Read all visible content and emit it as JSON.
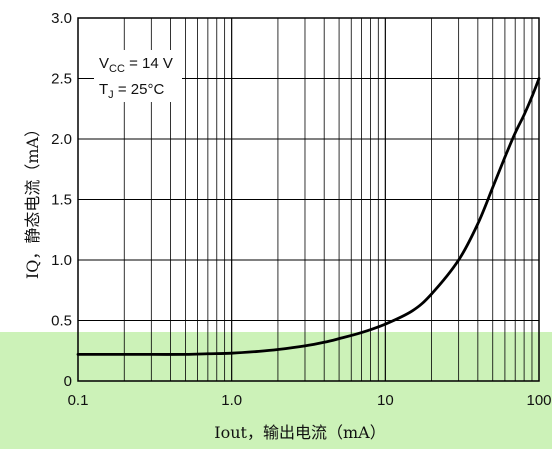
{
  "chart_data": {
    "type": "line",
    "xscale": "log",
    "xlim": [
      0.1,
      100
    ],
    "ylim": [
      0,
      3.0
    ],
    "x_ticks": [
      {
        "value": 0.1,
        "label": "0.1"
      },
      {
        "value": 1,
        "label": "1.0"
      },
      {
        "value": 10,
        "label": "10"
      },
      {
        "value": 100,
        "label": "100"
      }
    ],
    "y_ticks": [
      {
        "value": 0,
        "label": "0"
      },
      {
        "value": 0.5,
        "label": "0.5"
      },
      {
        "value": 1.0,
        "label": "1.0"
      },
      {
        "value": 1.5,
        "label": "1.5"
      },
      {
        "value": 2.0,
        "label": "2.0"
      },
      {
        "value": 2.5,
        "label": "2.5"
      },
      {
        "value": 3.0,
        "label": "3.0"
      }
    ],
    "xlabel": "Iout，输出电流（mA）",
    "ylabel": "IQ，静态电流（mA）",
    "annotations": [
      {
        "main": "V",
        "sub": "CC",
        "rest": " = 14 V"
      },
      {
        "main": "T",
        "sub": "J",
        "rest": " = 25°C"
      }
    ],
    "grid": true,
    "series": [
      {
        "color": "#000000",
        "x": [
          0.1,
          0.2,
          0.3,
          0.5,
          0.7,
          1,
          1.5,
          2,
          3,
          4,
          5,
          7,
          10,
          15,
          20,
          30,
          40,
          50,
          60,
          70,
          80,
          90,
          100
        ],
        "y": [
          0.22,
          0.22,
          0.22,
          0.22,
          0.225,
          0.23,
          0.245,
          0.26,
          0.29,
          0.32,
          0.35,
          0.4,
          0.47,
          0.58,
          0.72,
          1.0,
          1.3,
          1.6,
          1.85,
          2.05,
          2.2,
          2.35,
          2.5
        ]
      }
    ]
  },
  "colors": {
    "background_band": "#ccf2b8",
    "grid": "#000000",
    "curve": "#000000"
  }
}
